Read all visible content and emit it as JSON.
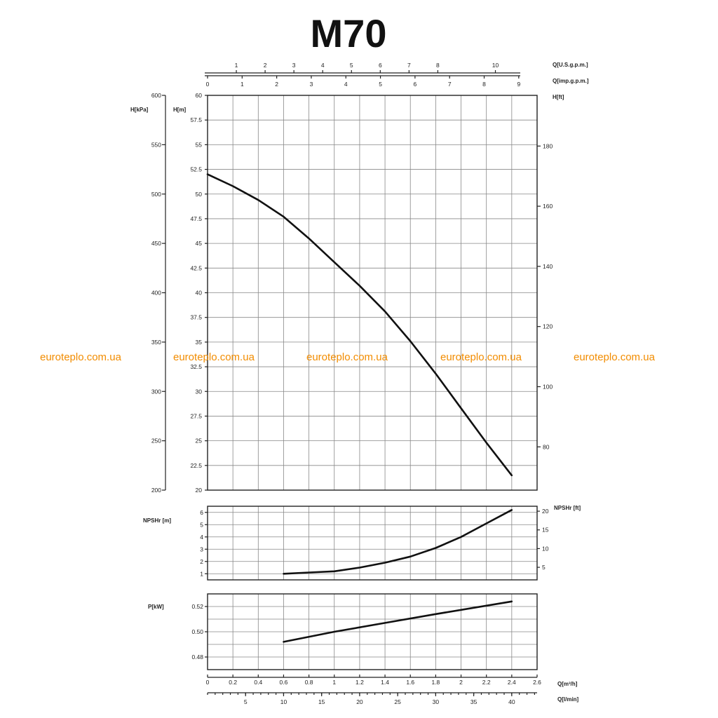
{
  "chart_data": {
    "type": "line",
    "title": "M70",
    "watermark": "euroteplo.com.ua",
    "watermark_color": "#f28c00",
    "axes": {
      "q_usgpm": {
        "label": "Q[U.S.g.p.m.]",
        "ticks": [
          "1",
          "2",
          "3",
          "4",
          "5",
          "6",
          "7",
          "8",
          "10"
        ]
      },
      "q_impgpm": {
        "label": "Q[imp.g.p.m.]",
        "ticks": [
          "0",
          "1",
          "2",
          "3",
          "4",
          "5",
          "6",
          "7",
          "8",
          "9"
        ]
      },
      "h_m": {
        "label": "H[m]",
        "ticks": [
          "60",
          "57.5",
          "55",
          "52.5",
          "50",
          "47.5",
          "45",
          "42.5",
          "40",
          "37.5",
          "35",
          "32.5",
          "30",
          "27.5",
          "25",
          "22.5",
          "20"
        ],
        "ylim": [
          20,
          60
        ]
      },
      "h_kpa": {
        "label": "H[kPa]",
        "ticks": [
          "600",
          "550",
          "500",
          "450",
          "400",
          "350",
          "300",
          "250",
          "200"
        ]
      },
      "h_ft": {
        "label": "H[ft]",
        "ticks": [
          "180",
          "160",
          "140",
          "120",
          "100",
          "80"
        ]
      },
      "npsh_m": {
        "label": "NPSHr [m]",
        "ticks": [
          "6",
          "5",
          "4",
          "3",
          "2",
          "1"
        ],
        "ylim": [
          0.5,
          6.5
        ]
      },
      "npsh_ft": {
        "label": "NPSHr [ft]",
        "ticks": [
          "20",
          "15",
          "10",
          "5"
        ]
      },
      "p_kw": {
        "label": "P[kW]",
        "ticks": [
          "0.52",
          "0.50",
          "0.48"
        ],
        "ylim": [
          0.47,
          0.53
        ]
      },
      "q_m3h": {
        "label": "Q[m³/h]",
        "ticks": [
          "0",
          "0.2",
          "0.4",
          "0.6",
          "0.8",
          "1",
          "1.2",
          "1.4",
          "1.6",
          "1.8",
          "2",
          "2.2",
          "2.4",
          "2.6"
        ],
        "xlim": [
          0,
          2.6
        ]
      },
      "q_lmin": {
        "label": "Q[l/min]",
        "ticks": [
          "5",
          "10",
          "15",
          "20",
          "25",
          "30",
          "35",
          "40"
        ]
      }
    },
    "series": [
      {
        "panel": "head",
        "x": [
          0,
          0.2,
          0.4,
          0.6,
          0.8,
          1.0,
          1.2,
          1.4,
          1.6,
          1.8,
          2.0,
          2.2,
          2.4
        ],
        "y": [
          52,
          50.8,
          49.4,
          47.7,
          45.5,
          43.1,
          40.7,
          38.1,
          35.1,
          31.8,
          28.3,
          24.8,
          21.5
        ]
      },
      {
        "panel": "npsh",
        "x": [
          0.6,
          0.8,
          1.0,
          1.2,
          1.4,
          1.6,
          1.8,
          2.0,
          2.2,
          2.4
        ],
        "y": [
          1.0,
          1.1,
          1.2,
          1.5,
          1.9,
          2.4,
          3.1,
          4.0,
          5.1,
          6.2
        ]
      },
      {
        "panel": "power",
        "x": [
          0.6,
          1.0,
          1.4,
          1.8,
          2.4
        ],
        "y": [
          0.492,
          0.5,
          0.507,
          0.514,
          0.524
        ]
      }
    ]
  }
}
